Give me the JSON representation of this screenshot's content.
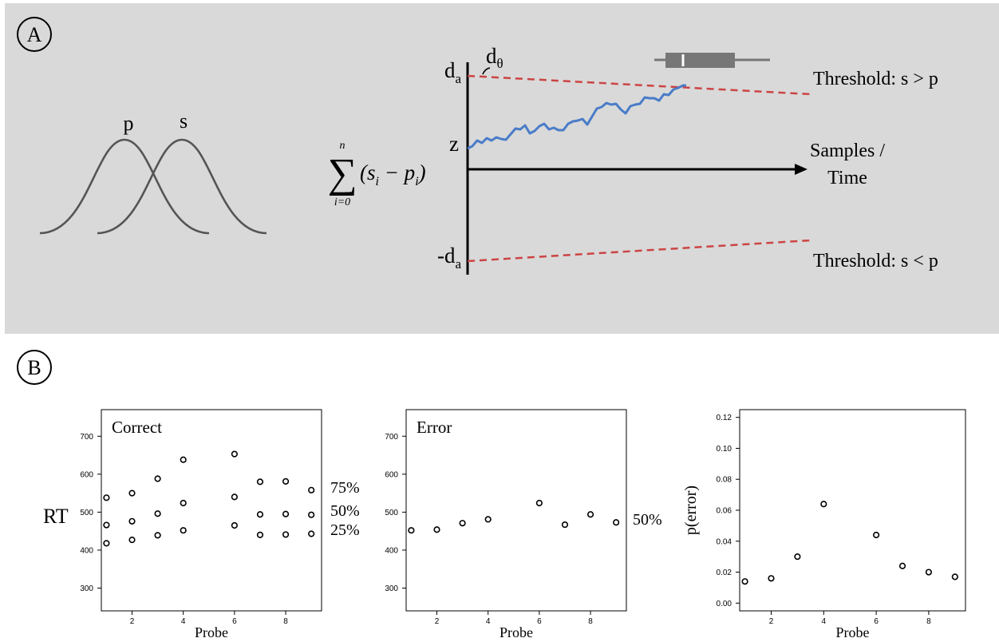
{
  "colors": {
    "panel_bg": "#d9d9d9",
    "curve": "#555555",
    "threshold": "#cc4444",
    "walk": "#4a7cc8",
    "axis": "#000000",
    "boxplot": "#777777"
  },
  "panel_a": {
    "letter": "A",
    "dist_p_label": "p",
    "dist_s_label": "s",
    "sum_upper": "n",
    "sum_sign": "∑",
    "sum_lower": "i=0",
    "sum_body": "(s",
    "sum_sub_i1": "i",
    "sum_minus_p": " − p",
    "sum_sub_i2": "i",
    "sum_close": ")",
    "upper_label": "d",
    "upper_sub": "a",
    "lower_label": "-d",
    "lower_sub": "a",
    "angle_label": "d",
    "angle_sub": "θ",
    "start_label": "z",
    "axis_label_line1": "Samples /",
    "axis_label_line2": "Time",
    "threshold_upper": "Threshold:  s > p",
    "threshold_lower": "Threshold:  s < p"
  },
  "panel_b": {
    "letter": "B",
    "quantile_labels": [
      "75%",
      "50%",
      "25%"
    ],
    "error_quantile_label": "50%",
    "rt_label": "RT"
  },
  "chart_data": [
    {
      "type": "scatter",
      "title": "Correct",
      "xlabel": "Probe",
      "ylabel": "RT",
      "xlim": [
        0.8,
        9.4
      ],
      "ylim": [
        240,
        770
      ],
      "xticks": [
        2,
        4,
        6,
        8
      ],
      "yticks": [
        300,
        400,
        500,
        600,
        700
      ],
      "x": [
        1,
        2,
        3,
        4,
        6,
        7,
        8,
        9
      ],
      "series": [
        {
          "name": "75%",
          "values": [
            538,
            550,
            588,
            638,
            653,
            580,
            581,
            558
          ]
        },
        {
          "name": "50%",
          "values": [
            466,
            476,
            496,
            524,
            540,
            494,
            495,
            493
          ]
        },
        {
          "name": "25%",
          "values": [
            418,
            427,
            439,
            452,
            465,
            440,
            441,
            443
          ]
        }
      ]
    },
    {
      "type": "scatter",
      "title": "Error",
      "xlabel": "Probe",
      "ylabel": "",
      "xlim": [
        0.8,
        9.4
      ],
      "ylim": [
        240,
        770
      ],
      "xticks": [
        2,
        4,
        6,
        8
      ],
      "yticks": [
        300,
        400,
        500,
        600,
        700
      ],
      "x": [
        1,
        2,
        3,
        4,
        6,
        7,
        8,
        9
      ],
      "series": [
        {
          "name": "50%",
          "values": [
            452,
            454,
            471,
            481,
            524,
            467,
            494,
            473
          ]
        }
      ]
    },
    {
      "type": "scatter",
      "title": "",
      "xlabel": "Probe",
      "ylabel": "p(error)",
      "xlim": [
        0.8,
        9.4
      ],
      "ylim": [
        -0.005,
        0.125
      ],
      "xticks": [
        2,
        4,
        6,
        8
      ],
      "yticks": [
        0.0,
        0.02,
        0.04,
        0.06,
        0.08,
        0.1,
        0.12
      ],
      "ytick_labels": [
        "0.00",
        "0.02",
        "0.04",
        "0.06",
        "0.08",
        "0.10",
        "0.12"
      ],
      "x": [
        1,
        2,
        3,
        4,
        6,
        7,
        8,
        9
      ],
      "series": [
        {
          "values": [
            0.014,
            0.016,
            0.03,
            0.064,
            0.044,
            0.024,
            0.02,
            0.017
          ]
        }
      ]
    }
  ]
}
